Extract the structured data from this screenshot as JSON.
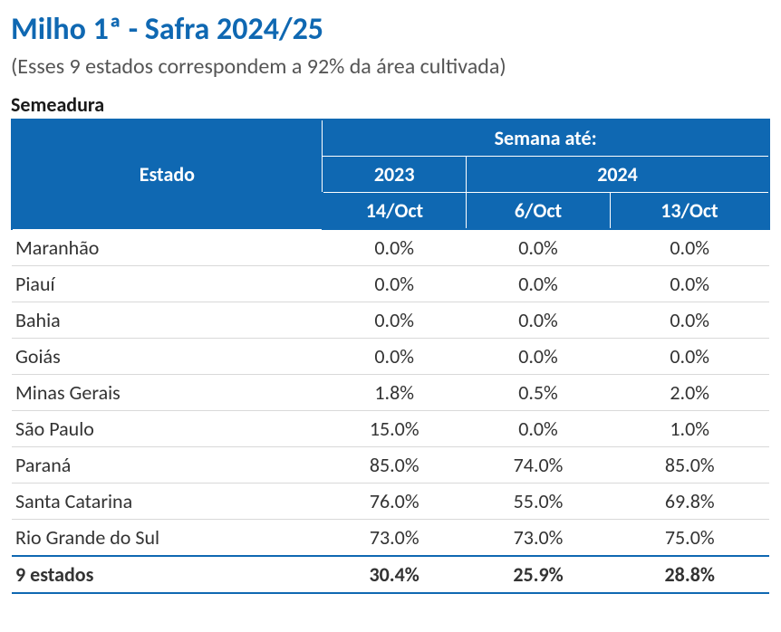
{
  "title": "Milho 1ª - Safra 2024/25",
  "subtitle": "(Esses 9 estados correspondem a 92% da área cultivada)",
  "section_label": "Semeadura",
  "colors": {
    "title": "#0f68b2",
    "header_bg": "#0f68b2",
    "header_text": "#ffffff",
    "border_outer": "#0f68b2",
    "row_border": "#d9d9d9",
    "subtitle": "#555555",
    "body_text": "#333333",
    "background": "#ffffff"
  },
  "typography": {
    "font_family": "Calibri",
    "title_size_pt": 26,
    "subtitle_size_pt": 18,
    "section_label_size_pt": 16,
    "cell_size_pt": 16
  },
  "table": {
    "type": "table",
    "header": {
      "estado": "Estado",
      "group_label": "Semana até:",
      "year_2023": "2023",
      "year_2024": "2024",
      "date_2023": "14/Oct",
      "date_2024a": "6/Oct",
      "date_2024b": "13/Oct"
    },
    "columns": [
      "Estado",
      "14/Oct",
      "6/Oct",
      "13/Oct"
    ],
    "column_widths_pct": [
      41,
      19,
      19,
      21
    ],
    "rows": [
      {
        "state": "Maranhão",
        "v2023": "0.0%",
        "v2024a": "0.0%",
        "v2024b": "0.0%"
      },
      {
        "state": "Piauí",
        "v2023": "0.0%",
        "v2024a": "0.0%",
        "v2024b": "0.0%"
      },
      {
        "state": "Bahia",
        "v2023": "0.0%",
        "v2024a": "0.0%",
        "v2024b": "0.0%"
      },
      {
        "state": "Goiás",
        "v2023": "0.0%",
        "v2024a": "0.0%",
        "v2024b": "0.0%"
      },
      {
        "state": "Minas Gerais",
        "v2023": "1.8%",
        "v2024a": "0.5%",
        "v2024b": "2.0%"
      },
      {
        "state": "São Paulo",
        "v2023": "15.0%",
        "v2024a": "0.0%",
        "v2024b": "1.0%"
      },
      {
        "state": "Paraná",
        "v2023": "85.0%",
        "v2024a": "74.0%",
        "v2024b": "85.0%"
      },
      {
        "state": "Santa Catarina",
        "v2023": "76.0%",
        "v2024a": "55.0%",
        "v2024b": "69.8%"
      },
      {
        "state": "Rio Grande do Sul",
        "v2023": "73.0%",
        "v2024a": "73.0%",
        "v2024b": "75.0%"
      }
    ],
    "total": {
      "state": "9 estados",
      "v2023": "30.4%",
      "v2024a": "25.9%",
      "v2024b": "28.8%"
    }
  }
}
